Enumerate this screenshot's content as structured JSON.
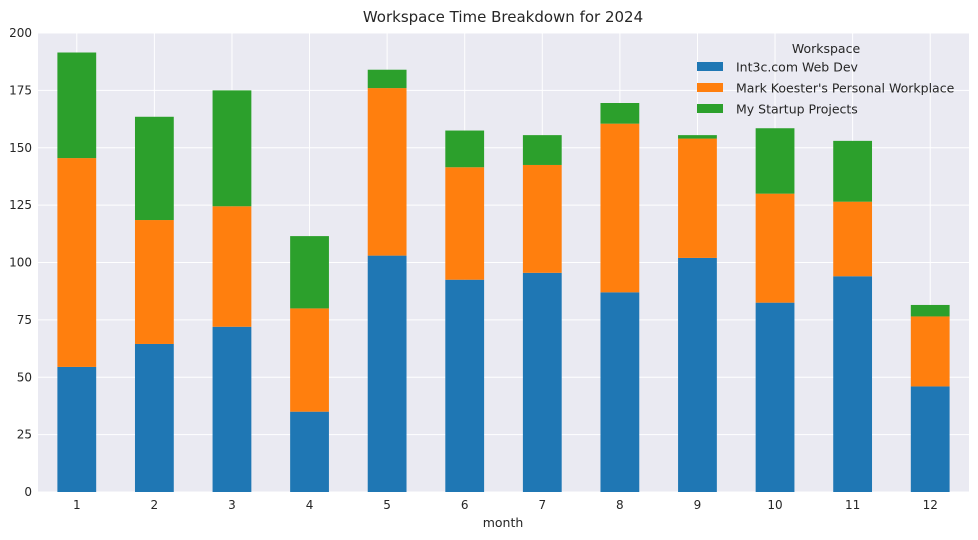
{
  "chart_data": {
    "type": "bar",
    "stacked": true,
    "title": "Workspace Time Breakdown for 2024",
    "xlabel": "month",
    "ylabel": "",
    "categories": [
      "1",
      "2",
      "3",
      "4",
      "5",
      "6",
      "7",
      "8",
      "9",
      "10",
      "11",
      "12"
    ],
    "ylim": [
      0,
      200
    ],
    "yticks": [
      0,
      25,
      50,
      75,
      100,
      125,
      150,
      175,
      200
    ],
    "grid": true,
    "legend": {
      "title": "Workspace",
      "placement": "top-right"
    },
    "series": [
      {
        "name": "Int3c.com Web Dev",
        "color": "#1f77b4",
        "values": [
          54.5,
          64.5,
          72,
          35,
          103,
          92.5,
          95.5,
          87,
          102,
          82.5,
          94,
          46
        ]
      },
      {
        "name": "Mark Koester's Personal Workplace",
        "color": "#ff7f0e",
        "values": [
          91,
          54,
          52.5,
          45,
          73,
          49,
          47,
          73.5,
          52,
          47.5,
          32.5,
          30.5
        ]
      },
      {
        "name": "My Startup Projects",
        "color": "#2ca02c",
        "values": [
          46,
          45,
          50.5,
          31.5,
          8,
          16,
          13,
          9,
          1.5,
          28.5,
          26.5,
          5
        ]
      }
    ]
  },
  "style": {
    "plot_background": "#eaeaf2",
    "grid_color": "#ffffff",
    "text_color": "#262626"
  }
}
